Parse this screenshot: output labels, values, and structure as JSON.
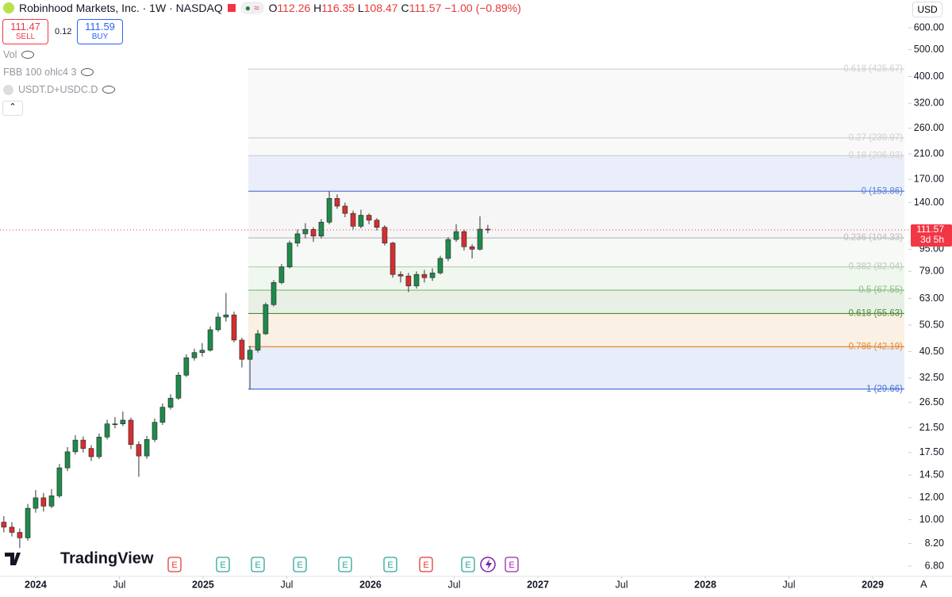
{
  "header": {
    "symbol": "Robinhood Markets, Inc. · 1W · NASDAQ",
    "ohlc": [
      {
        "prefix": "O",
        "value": 112.26
      },
      {
        "prefix": "H",
        "value": 116.35
      },
      {
        "prefix": "L",
        "value": 108.47
      },
      {
        "prefix": "C",
        "value": 111.57
      }
    ],
    "change": {
      "value": -1.0,
      "label": "−1.00"
    },
    "change_pct": {
      "value": -0.89,
      "label": "(−0.89%)"
    },
    "sell": {
      "price": 111.47,
      "label": "SELL"
    },
    "spread": 0.12,
    "buy": {
      "price": 111.59,
      "label": "BUY"
    }
  },
  "indicators": [
    "Vol",
    "FBB 100 ohlc4 3",
    "USDT.D+USDC.D"
  ],
  "currency": "USD",
  "logo": "TradingView",
  "axis_button": "A",
  "earnings_markers": [
    "E",
    "E",
    "E",
    "E",
    "E",
    "E",
    "E",
    "E",
    "E"
  ],
  "chart_data": {
    "type": "candlestick",
    "x": [
      2023.81,
      2023.858,
      2023.905,
      2023.953,
      2024.0,
      2024.047,
      2024.095,
      2024.142,
      2024.19,
      2024.237,
      2024.284,
      2024.332,
      2024.379,
      2024.427,
      2024.474,
      2024.521,
      2024.569,
      2024.616,
      2024.664,
      2024.711,
      2024.758,
      2024.806,
      2024.853,
      2024.9,
      2024.948,
      2024.995,
      2025.043,
      2025.09,
      2025.137,
      2025.185,
      2025.232,
      2025.28,
      2025.327,
      2025.374,
      2025.422,
      2025.469,
      2025.517,
      2025.564,
      2025.611,
      2025.659,
      2025.706,
      2025.754,
      2025.801,
      2025.848,
      2025.896,
      2025.943,
      2025.991,
      2026.038,
      2026.085,
      2026.133,
      2026.18,
      2026.227,
      2026.275,
      2026.322,
      2026.37,
      2026.417,
      2026.464,
      2026.512,
      2026.559,
      2026.607,
      2026.654,
      2026.701
    ],
    "open": [
      9.8,
      9.4,
      9.0,
      8.6,
      11.0,
      12.0,
      11.2,
      12.2,
      15.4,
      17.6,
      19.4,
      18.1,
      16.9,
      19.9,
      22.2,
      22.2,
      22.9,
      18.7,
      17.0,
      19.5,
      22.5,
      25.5,
      27.5,
      33.3,
      38.5,
      40.2,
      41.0,
      48.6,
      54,
      55,
      44.6,
      38,
      41,
      47,
      59.9,
      72,
      82,
      100,
      108,
      112,
      106,
      119,
      145,
      136,
      128,
      115,
      126,
      121,
      114,
      100,
      77,
      76,
      70,
      77,
      75,
      78,
      88,
      103,
      110,
      97,
      95,
      112.26
    ],
    "high": [
      10.3,
      9.8,
      9.3,
      11.4,
      12.8,
      12.5,
      12.9,
      15.9,
      18.3,
      20.2,
      20.0,
      18.6,
      20.5,
      23.0,
      23.5,
      24.6,
      23.4,
      19.2,
      20.1,
      23.2,
      26.3,
      28.4,
      34.2,
      39.6,
      41.5,
      43.5,
      50.0,
      56,
      66,
      56.5,
      45.5,
      42.5,
      48.5,
      61,
      73.5,
      84,
      102,
      112,
      118,
      114,
      122,
      153.86,
      150,
      140,
      131,
      132,
      128,
      123,
      116,
      101,
      79,
      78,
      79,
      80,
      81,
      90,
      105,
      117,
      112,
      99,
      125,
      116.35
    ],
    "low": [
      9.0,
      8.7,
      7.9,
      8.4,
      10.6,
      10.7,
      11.0,
      12.0,
      15.0,
      17.2,
      17.5,
      16.3,
      16.6,
      19.5,
      21.4,
      21.8,
      18.0,
      14.3,
      16.6,
      19.1,
      22.0,
      25.0,
      27.1,
      32.8,
      37.6,
      38.9,
      40.5,
      47.8,
      52,
      43.8,
      35.5,
      29.66,
      40.2,
      46.5,
      59,
      71,
      81,
      97,
      104,
      101,
      104,
      117,
      133,
      124,
      112,
      113,
      117,
      111,
      98,
      75,
      72,
      66.5,
      68.5,
      72,
      73,
      77,
      86,
      101,
      94,
      88,
      94,
      108.47
    ],
    "close": [
      9.4,
      9.0,
      8.6,
      11.0,
      12.0,
      11.2,
      12.2,
      15.4,
      17.6,
      19.4,
      18.1,
      16.9,
      19.9,
      22.2,
      22.2,
      22.9,
      18.7,
      17.0,
      19.5,
      22.5,
      25.5,
      27.5,
      33.3,
      38.5,
      40.2,
      41.0,
      48.6,
      54,
      55,
      44.6,
      38,
      41,
      47,
      59.9,
      72,
      82,
      100,
      108,
      112,
      106,
      119,
      145,
      136,
      128,
      115,
      126,
      121,
      114,
      100,
      77,
      76,
      70,
      77,
      75,
      78,
      88,
      103,
      110,
      97,
      95,
      112.26,
      111.57
    ],
    "up_color": "#1f8a4c",
    "down_color": "#d32f2f",
    "xlim": [
      2023.787,
      2029.213
    ],
    "xticks": [
      2024,
      {
        "value": 2024.5,
        "label": "Jul"
      },
      2025,
      {
        "value": 2025.5,
        "label": "Jul"
      },
      2026,
      {
        "value": 2026.5,
        "label": "Jul"
      },
      2027,
      {
        "value": 2027.5,
        "label": "Jul"
      },
      2028,
      {
        "value": 2028.5,
        "label": "Jul"
      },
      2029
    ],
    "ylim": [
      6.24,
      756
    ],
    "log_scale": true,
    "yticks": [
      {
        "value": 600,
        "label": "600.00"
      },
      {
        "value": 500,
        "label": "500.00"
      },
      {
        "value": 400,
        "label": "400.00"
      },
      {
        "value": 320,
        "label": "320.00"
      },
      {
        "value": 260,
        "label": "260.00"
      },
      {
        "value": 210,
        "label": "210.00"
      },
      {
        "value": 170,
        "label": "170.00"
      },
      {
        "value": 140,
        "label": "140.00"
      },
      {
        "value": 95,
        "label": "95.00"
      },
      {
        "value": 79,
        "label": "79.00"
      },
      {
        "value": 63,
        "label": "63.00"
      },
      {
        "value": 50.5,
        "label": "50.50"
      },
      {
        "value": 40.5,
        "label": "40.50"
      },
      {
        "value": 32.5,
        "label": "32.50"
      },
      {
        "value": 26.5,
        "label": "26.50"
      },
      {
        "value": 21.5,
        "label": "21.50"
      },
      {
        "value": 17.5,
        "label": "17.50"
      },
      {
        "value": 14.5,
        "label": "14.50"
      },
      {
        "value": 12,
        "label": "12.00"
      },
      {
        "value": 10,
        "label": "10.00"
      },
      {
        "value": 8.2,
        "label": "8.20"
      },
      {
        "value": 6.8,
        "label": "6.80"
      }
    ],
    "fib_levels": [
      {
        "value": 425.67,
        "label": "-0.618 (425.67)",
        "color": "#d0d0d0"
      },
      {
        "value": 239.97,
        "label": "-0.27 (239.97)",
        "color": "#d0d0d0"
      },
      {
        "value": 206.93,
        "label": "-0.18 (206.93)",
        "color": "#d0d0d0"
      },
      {
        "value": 153.86,
        "label": "0 (153.86)",
        "color": "#5a7fd9"
      },
      {
        "value": 104.33,
        "label": "0.236 (104.33)",
        "color": "#bdbdbd"
      },
      {
        "value": 82.04,
        "label": "0.382 (82.04)",
        "color": "#b7cdb3"
      },
      {
        "value": 67.55,
        "label": "0.5 (67.55)",
        "color": "#86c07e"
      },
      {
        "value": 55.63,
        "label": "0.618 (55.63)",
        "color": "#4d8a3a"
      },
      {
        "value": 42.19,
        "label": "0.786 (42.19)",
        "color": "#e38a2c"
      },
      {
        "value": 29.66,
        "label": "1 (29.66)",
        "color": "#4a72d9"
      }
    ],
    "last_price": 111.57,
    "countdown": "3d 5h"
  }
}
